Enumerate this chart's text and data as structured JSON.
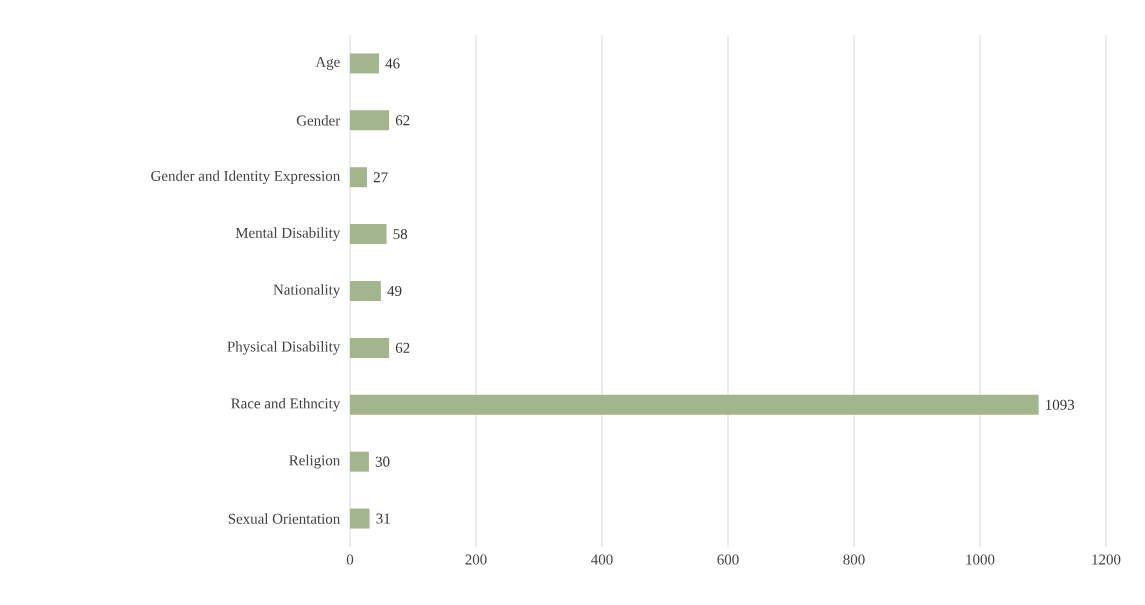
{
  "chart_data": {
    "type": "bar",
    "orientation": "horizontal",
    "categories": [
      "Age",
      "Gender",
      "Gender and Identity Expression",
      "Mental Disability",
      "Nationality",
      "Physical Disability",
      "Race and Ethncity",
      "Religion",
      "Sexual Orientation"
    ],
    "values": [
      46,
      62,
      27,
      58,
      49,
      62,
      1093,
      30,
      31
    ],
    "color": "#a2b58c",
    "xlim": [
      0,
      1200
    ],
    "xticks": [
      0,
      200,
      400,
      600,
      800,
      1000,
      1200
    ],
    "grid": "x",
    "data_labels": true
  }
}
